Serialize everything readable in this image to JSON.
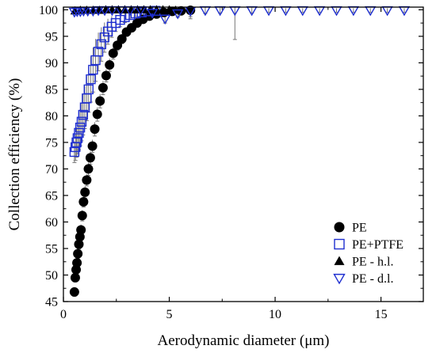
{
  "chart_data": {
    "type": "scatter",
    "xlabel": "Aerodynamic diameter (μm)",
    "ylabel": "Collection efficiency (%)",
    "xlim": [
      0,
      17
    ],
    "ylim": [
      45,
      100.5
    ],
    "xticks": [
      0,
      5,
      10,
      15
    ],
    "xtick_labels": [
      "0",
      "5",
      "10",
      "15"
    ],
    "yticks": [
      45,
      50,
      55,
      60,
      65,
      70,
      75,
      80,
      85,
      90,
      95,
      100
    ],
    "ytick_labels": [
      "45",
      "50",
      "55",
      "60",
      "65",
      "70",
      "75",
      "80",
      "85",
      "90",
      "95",
      "100"
    ],
    "grid": false,
    "legend_position": "bottom-right",
    "series": [
      {
        "name": "PE",
        "marker": "filled-circle",
        "color": "#000000",
        "x": [
          0.52,
          0.56,
          0.6,
          0.64,
          0.68,
          0.73,
          0.78,
          0.83,
          0.89,
          0.95,
          1.02,
          1.1,
          1.18,
          1.27,
          1.37,
          1.48,
          1.6,
          1.73,
          1.87,
          2.02,
          2.18,
          2.35,
          2.55,
          2.76,
          2.98,
          3.22,
          3.48,
          3.76,
          4.06,
          4.4,
          4.75,
          5.14,
          5.56,
          6.0
        ],
        "y": [
          46.8,
          49.5,
          51,
          52.3,
          54,
          55.8,
          57.2,
          58.5,
          61.2,
          63.8,
          65.6,
          67.9,
          70,
          72.1,
          74.3,
          77.5,
          80.3,
          82.8,
          85.3,
          87.6,
          89.6,
          91.8,
          93.3,
          94.5,
          95.8,
          96.6,
          97.5,
          98.2,
          98.8,
          99.2,
          99.5,
          99.7,
          99.8,
          99.9
        ],
        "error": [
          0.8,
          0.8,
          0.8,
          0.8,
          0.9,
          0.9,
          0.9,
          1.0,
          1.0,
          1.0,
          1.1,
          1.1,
          1.2,
          1.2,
          1.2,
          1.3,
          1.3,
          1.3,
          1.3,
          1.2,
          1.2,
          1.1,
          1.0,
          0.9,
          0.8,
          0.7,
          0.6,
          0.5,
          0.4,
          0.3,
          0.3,
          0.2,
          0.8,
          1.2
        ]
      },
      {
        "name": "PE+PTFE",
        "marker": "open-square",
        "color": "#1f2fd0",
        "x": [
          0.52,
          0.57,
          0.62,
          0.67,
          0.73,
          0.79,
          0.86,
          0.93,
          1.01,
          1.1,
          1.19,
          1.29,
          1.4,
          1.52,
          1.65,
          1.79,
          1.94,
          2.1,
          2.28,
          2.47,
          2.68,
          2.9,
          3.15,
          3.41,
          3.7,
          4.01,
          4.35
        ],
        "y": [
          73.2,
          74.1,
          75,
          75.8,
          76.8,
          77.8,
          78.9,
          80.2,
          81.6,
          83.3,
          85,
          86.9,
          88.7,
          90.5,
          92.1,
          93.5,
          94.8,
          95.9,
          96.8,
          97.5,
          98.1,
          98.6,
          99,
          99.3,
          99.5,
          99.7,
          99.8
        ],
        "error": [
          2.0,
          2.5,
          2.8,
          3.0,
          3.2,
          3.4,
          3.6,
          3.8,
          4.0,
          4.2,
          4.3,
          4.3,
          4.2,
          4.0,
          3.6,
          3.2,
          2.8,
          2.4,
          2.0,
          1.6,
          1.3,
          1.0,
          0.8,
          0.6,
          0.5,
          0.4,
          0.3
        ]
      },
      {
        "name": "PE - h.l.",
        "marker": "filled-triangle-up",
        "color": "#000000",
        "x": [
          0.55,
          0.8,
          1.1,
          1.4,
          1.7,
          2.0,
          2.3,
          2.6,
          2.9,
          3.2,
          3.5,
          3.8,
          4.1,
          4.4,
          4.7,
          5.0,
          5.3
        ],
        "y": [
          99.8,
          99.9,
          99.9,
          99.9,
          99.9,
          100,
          100,
          100,
          100,
          100,
          100,
          100,
          100,
          100,
          100,
          100,
          99.9
        ],
        "error": [
          0.4,
          0.4,
          0.3,
          0.3,
          0.3,
          0.3,
          0.3,
          0.2,
          0.2,
          0.2,
          0.2,
          0.2,
          0.2,
          0.2,
          0.3,
          0.5,
          0.6
        ]
      },
      {
        "name": "PE - d.l.",
        "marker": "open-triangle-down",
        "color": "#1f2fd0",
        "x": [
          0.52,
          0.65,
          0.8,
          0.95,
          1.15,
          1.4,
          1.65,
          1.95,
          2.3,
          2.7,
          3.15,
          3.65,
          4.2,
          4.8,
          5.4,
          6.0,
          6.7,
          7.4,
          8.1,
          8.9,
          9.7,
          10.5,
          11.3,
          12.1,
          12.9,
          13.7,
          14.5,
          15.3,
          16.1
        ],
        "y": [
          99.6,
          99.7,
          99.7,
          99.8,
          99.8,
          99.8,
          99.9,
          99.9,
          99.9,
          99.9,
          99.9,
          99.9,
          99.4,
          98.3,
          99.3,
          99.8,
          99.9,
          99.9,
          99.9,
          99.9,
          99.9,
          99.9,
          99.9,
          99.9,
          99.9,
          99.9,
          99.9,
          99.9,
          99.9
        ],
        "error": [
          0.3,
          0.3,
          0.3,
          0.3,
          0.2,
          0.2,
          0.2,
          0.2,
          0.2,
          0.2,
          0.2,
          0.3,
          0.6,
          0.8,
          0.7,
          1.5,
          0.6,
          0.5,
          5.5,
          0.5,
          0.4,
          0.4,
          0.4,
          0.4,
          0.4,
          0.4,
          0.4,
          0.4,
          0.4
        ]
      }
    ]
  }
}
